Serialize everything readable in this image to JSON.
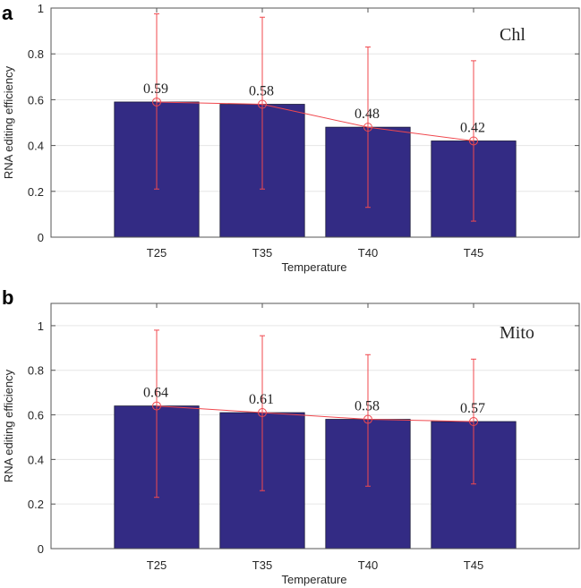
{
  "chart_data": [
    {
      "type": "bar",
      "panel_label": "a",
      "annotation": "Chl",
      "categories": [
        "T25",
        "T35",
        "T40",
        "T45"
      ],
      "values": [
        0.59,
        0.58,
        0.48,
        0.42
      ],
      "data_labels": [
        "0.59",
        "0.58",
        "0.48",
        "0.42"
      ],
      "error_low": [
        0.21,
        0.21,
        0.13,
        0.07
      ],
      "error_high": [
        0.975,
        0.96,
        0.83,
        0.77
      ],
      "xlabel": "Temperature",
      "ylabel": "RNA editing efficiency",
      "xlim": [
        0,
        5
      ],
      "ylim": [
        0,
        1
      ],
      "yticks": [
        0,
        0.2,
        0.4,
        0.6,
        0.8,
        1
      ],
      "ytick_labels": [
        "0",
        "0.2",
        "0.4",
        "0.6",
        "0.8",
        "1"
      ],
      "grid": true,
      "bar_color": "#332B84",
      "line_color": "#F0484E"
    },
    {
      "type": "bar",
      "panel_label": "b",
      "annotation": "Mito",
      "categories": [
        "T25",
        "T35",
        "T40",
        "T45"
      ],
      "values": [
        0.64,
        0.61,
        0.58,
        0.57
      ],
      "data_labels": [
        "0.64",
        "0.61",
        "0.58",
        "0.57"
      ],
      "error_low": [
        0.23,
        0.26,
        0.28,
        0.29
      ],
      "error_high": [
        0.98,
        0.955,
        0.87,
        0.85
      ],
      "xlabel": "Temperature",
      "ylabel": "RNA editing efficiency",
      "xlim": [
        0,
        5
      ],
      "ylim": [
        0,
        1.1
      ],
      "yticks": [
        0,
        0.2,
        0.4,
        0.6,
        0.8,
        1
      ],
      "ytick_labels": [
        "0",
        "0.2",
        "0.4",
        "0.6",
        "0.8",
        "1"
      ],
      "grid": true,
      "bar_color": "#332B84",
      "line_color": "#F0484E"
    }
  ]
}
